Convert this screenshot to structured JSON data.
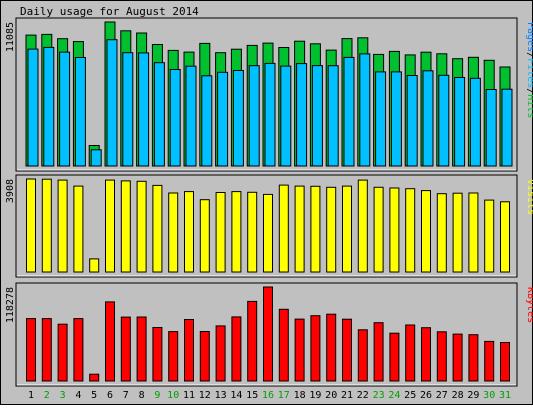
{
  "chart_data": {
    "type": "bar",
    "title": "Daily usage for August 2014",
    "categories": [
      "1",
      "2",
      "3",
      "4",
      "5",
      "6",
      "7",
      "8",
      "9",
      "10",
      "11",
      "12",
      "13",
      "14",
      "15",
      "16",
      "17",
      "18",
      "19",
      "20",
      "21",
      "22",
      "23",
      "24",
      "25",
      "26",
      "27",
      "28",
      "29",
      "30",
      "31"
    ],
    "weekend_days": [
      "2",
      "3",
      "9",
      "10",
      "16",
      "17",
      "23",
      "24",
      "30",
      "31"
    ],
    "colors": {
      "hits": "#00c030",
      "files": "#00c0ff",
      "visits": "#ffff00",
      "kbytes": "#ff0000",
      "weekday_label": "#000000",
      "weekend_label": "#00a000",
      "background": "#c0c0c0",
      "panel_border": "#555555"
    },
    "panels": [
      {
        "key": "hits_files_pages",
        "max_label": "11085",
        "ymax": 11085,
        "legend": [
          {
            "text": "Pages",
            "color": "#0080ff"
          },
          {
            "text": "/",
            "color": "#000000"
          },
          {
            "text": "Files",
            "color": "#00c0ff"
          },
          {
            "text": "/",
            "color": "#000000"
          },
          {
            "text": "Hits",
            "color": "#00c030"
          }
        ],
        "series": [
          {
            "name": "Hits",
            "color": "#00c030",
            "values": [
              10080,
              10130,
              9800,
              9580,
              1580,
              11085,
              10410,
              10240,
              9350,
              8900,
              8770,
              9440,
              8720,
              8990,
              9280,
              9460,
              9120,
              9610,
              9410,
              8920,
              9810,
              9870,
              8590,
              8820,
              8550,
              8760,
              8640,
              8260,
              8370,
              8140,
              7620
            ]
          },
          {
            "name": "Files",
            "color": "#00c0ff",
            "values": [
              9000,
              9130,
              8770,
              8350,
              1250,
              9720,
              8720,
              8710,
              7950,
              7430,
              7680,
              6940,
              7210,
              7350,
              7720,
              7900,
              7690,
              7880,
              7730,
              7720,
              8360,
              8630,
              7240,
              7240,
              6970,
              7330,
              6980,
              6810,
              6750,
              5890,
              5910
            ]
          }
        ]
      },
      {
        "key": "visits",
        "max_label": "3908",
        "ymax": 3908,
        "legend": [
          {
            "text": "Visits",
            "color": "#ffff00"
          }
        ],
        "series": [
          {
            "name": "Visits",
            "color": "#ffff00",
            "values": [
              3908,
              3900,
              3860,
              3610,
              550,
              3860,
              3830,
              3810,
              3640,
              3320,
              3380,
              3040,
              3340,
              3380,
              3350,
              3260,
              3650,
              3610,
              3600,
              3560,
              3610,
              3860,
              3560,
              3530,
              3500,
              3420,
              3290,
              3310,
              3320,
              3020,
              2950
            ]
          }
        ]
      },
      {
        "key": "kbytes",
        "max_label": "118278",
        "ymax": 118278,
        "legend": [
          {
            "text": "KBytes",
            "color": "#ff0000"
          }
        ],
        "series": [
          {
            "name": "KBytes",
            "color": "#ff0000",
            "values": [
              78500,
              78500,
              71500,
              78500,
              8500,
              99500,
              80400,
              80500,
              67300,
              62200,
              77400,
              62300,
              69300,
              80600,
              100200,
              118278,
              90200,
              77900,
              82200,
              84000,
              77700,
              64400,
              73300,
              60200,
              70500,
              67100,
              61900,
              59000,
              58300,
              49800,
              48400
            ]
          }
        ]
      }
    ]
  }
}
